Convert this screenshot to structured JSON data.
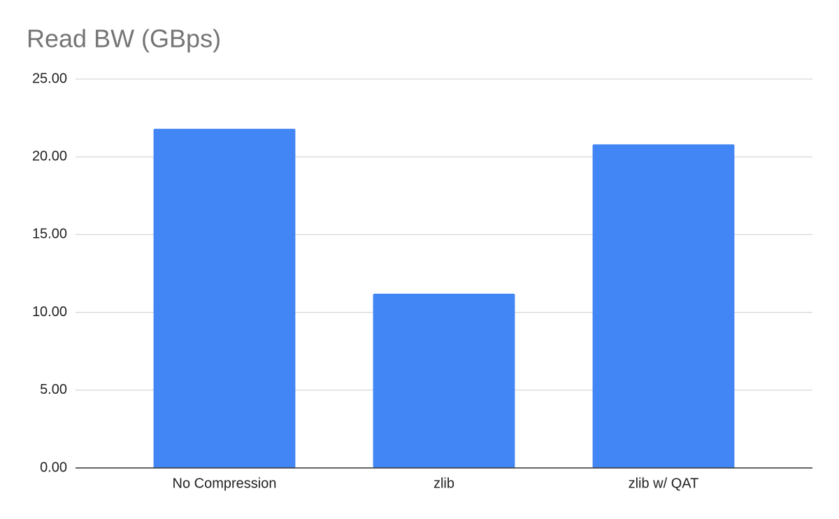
{
  "chart_data": {
    "type": "bar",
    "title": "Read BW (GBps)",
    "categories": [
      "No Compression",
      "zlib",
      "zlib w/ QAT"
    ],
    "values": [
      21.8,
      11.2,
      20.8
    ],
    "color": "#4285f4",
    "ylim": [
      0,
      25
    ],
    "yticks": [
      {
        "value": 0,
        "label": "0.00"
      },
      {
        "value": 5,
        "label": "5.00"
      },
      {
        "value": 10,
        "label": "10.00"
      },
      {
        "value": 15,
        "label": "15.00"
      },
      {
        "value": 20,
        "label": "20.00"
      },
      {
        "value": 25,
        "label": "25.00"
      }
    ],
    "grid": true
  }
}
